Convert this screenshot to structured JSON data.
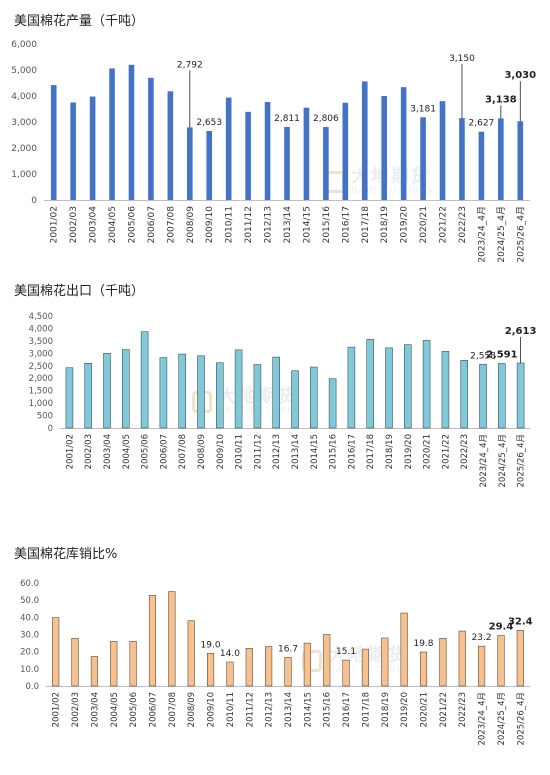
{
  "chart_data": [
    {
      "type": "bar",
      "title": "美国棉花产量（千吨）",
      "categories": [
        "2001/02",
        "2002/03",
        "2003/04",
        "2004/05",
        "2005/06",
        "2006/07",
        "2007/08",
        "2008/09",
        "2009/10",
        "2010/11",
        "2011/12",
        "2012/13",
        "2013/14",
        "2014/15",
        "2015/16",
        "2016/17",
        "2017/18",
        "2018/19",
        "2019/20",
        "2020/21",
        "2021/22",
        "2022/23",
        "2023/24_4月",
        "2024/25_4月",
        "2025/26_4月"
      ],
      "values": [
        4420,
        3750,
        3980,
        5060,
        5200,
        4700,
        4180,
        2792,
        2653,
        3940,
        3390,
        3770,
        2811,
        3550,
        2806,
        3740,
        4560,
        4000,
        4340,
        3181,
        3800,
        3150,
        2627,
        3138,
        3030
      ],
      "labeled_values": {
        "7": "2,792",
        "8": "2,653",
        "12": "2,811",
        "14": "2,806",
        "19": "3,181",
        "21": "3,150",
        "22": "2,627",
        "23": "3,138",
        "24": "3,030"
      },
      "ylim": [
        0,
        6000
      ],
      "yticks": [
        "0",
        "1,000",
        "2,000",
        "3,000",
        "4,000",
        "5,000",
        "6,000"
      ],
      "color": "#4472c4",
      "grid": false
    },
    {
      "type": "bar",
      "title": "美国棉花出口（千吨）",
      "categories": [
        "2001/02",
        "2002/03",
        "2003/04",
        "2004/05",
        "2005/06",
        "2006/07",
        "2007/08",
        "2008/09",
        "2009/10",
        "2010/11",
        "2011/12",
        "2012/13",
        "2013/14",
        "2014/15",
        "2015/16",
        "2016/17",
        "2017/18",
        "2018/19",
        "2019/20",
        "2020/21",
        "2021/22",
        "2022/23",
        "2023/24_4月",
        "2024/25_4月",
        "2025/26_4月"
      ],
      "values": [
        2420,
        2600,
        3000,
        3150,
        3870,
        2830,
        2970,
        2900,
        2620,
        3140,
        2550,
        2850,
        2300,
        2450,
        1980,
        3250,
        3560,
        3220,
        3350,
        3520,
        3080,
        2720,
        2558,
        2591,
        2613
      ],
      "labeled_values": {
        "22": "2,558",
        "23": "2,591",
        "24": "2,613"
      },
      "ylim": [
        0,
        4500
      ],
      "yticks": [
        "0",
        "500",
        "1,000",
        "1,500",
        "2,000",
        "2,500",
        "3,000",
        "3,500",
        "4,000",
        "4,500"
      ],
      "color": "#7fc9d8",
      "grid": false
    },
    {
      "type": "bar",
      "title": "美国棉花库销比%",
      "categories": [
        "2001/02",
        "2002/03",
        "2003/04",
        "2004/05",
        "2005/06",
        "2006/07",
        "2007/08",
        "2008/09",
        "2009/10",
        "2010/11",
        "2011/12",
        "2012/13",
        "2013/14",
        "2014/15",
        "2015/16",
        "2016/17",
        "2017/18",
        "2018/19",
        "2019/20",
        "2020/21",
        "2021/22",
        "2022/23",
        "2023/24_4月",
        "2024/25_4月",
        "2025/26_4月"
      ],
      "values": [
        39.8,
        27.8,
        17.2,
        26.0,
        26.0,
        52.8,
        55.0,
        38.0,
        19.0,
        14.0,
        22.0,
        23.0,
        16.7,
        25.0,
        30.0,
        15.1,
        21.5,
        28.0,
        42.5,
        19.8,
        27.8,
        32.0,
        23.2,
        29.4,
        32.4
      ],
      "labeled_values": {
        "8": "19.0",
        "9": "14.0",
        "12": "16.7",
        "15": "15.1",
        "19": "19.8",
        "22": "23.2",
        "23": "29.4",
        "24": "32.4"
      },
      "ylim": [
        0,
        60
      ],
      "yticks": [
        "0.0",
        "10.0",
        "20.0",
        "30.0",
        "40.0",
        "50.0",
        "60.0"
      ],
      "color": "#f8c08c",
      "grid": false
    }
  ],
  "watermark": {
    "cn": "大地期货",
    "en": "DADI FUTURES"
  }
}
